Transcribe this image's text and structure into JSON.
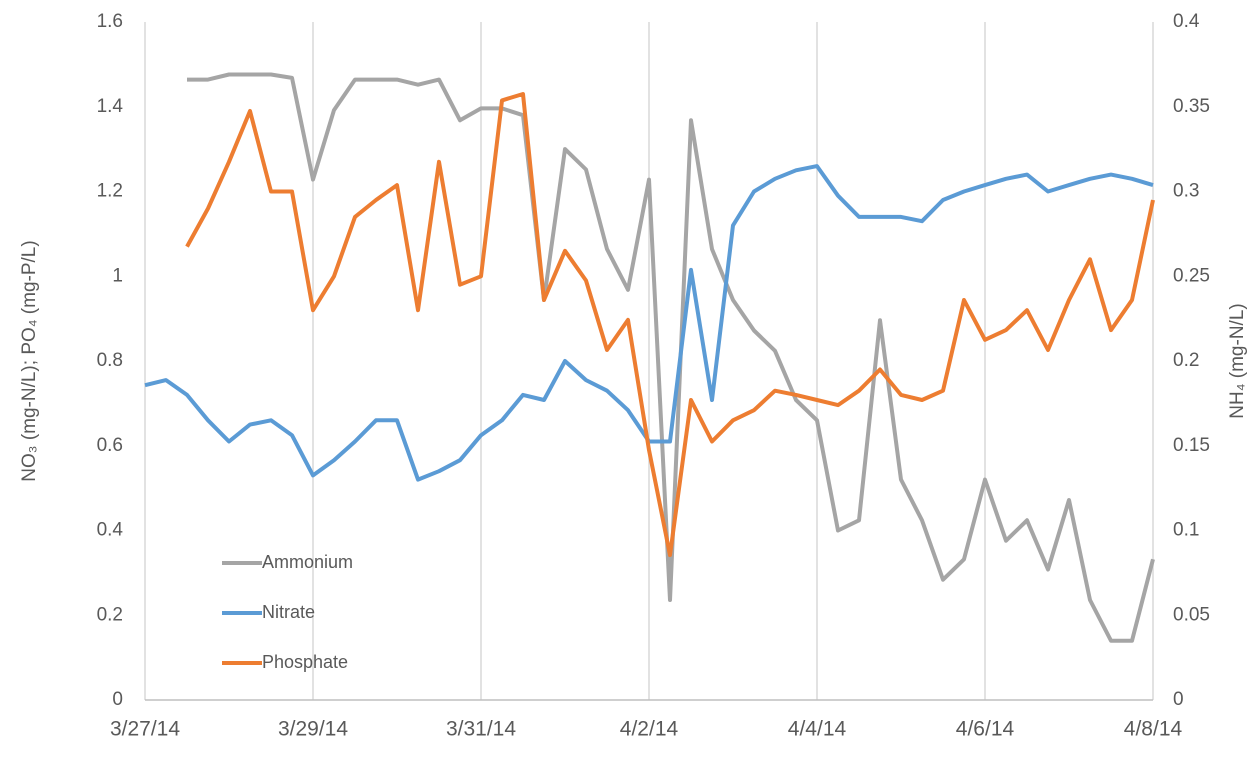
{
  "chart_data": {
    "type": "line",
    "x": [
      "2014-03-27T00:00",
      "2014-03-27T06:00",
      "2014-03-27T12:00",
      "2014-03-27T18:00",
      "2014-03-28T00:00",
      "2014-03-28T06:00",
      "2014-03-28T12:00",
      "2014-03-28T18:00",
      "2014-03-29T00:00",
      "2014-03-29T06:00",
      "2014-03-29T12:00",
      "2014-03-29T18:00",
      "2014-03-30T00:00",
      "2014-03-30T06:00",
      "2014-03-30T12:00",
      "2014-03-30T18:00",
      "2014-03-31T00:00",
      "2014-03-31T06:00",
      "2014-03-31T12:00",
      "2014-03-31T18:00",
      "2014-04-01T00:00",
      "2014-04-01T06:00",
      "2014-04-01T12:00",
      "2014-04-01T18:00",
      "2014-04-02T00:00",
      "2014-04-02T06:00",
      "2014-04-02T12:00",
      "2014-04-02T18:00",
      "2014-04-03T00:00",
      "2014-04-03T06:00",
      "2014-04-03T12:00",
      "2014-04-03T18:00",
      "2014-04-04T00:00",
      "2014-04-04T06:00",
      "2014-04-04T12:00",
      "2014-04-04T18:00",
      "2014-04-05T00:00",
      "2014-04-05T06:00",
      "2014-04-05T12:00",
      "2014-04-05T18:00",
      "2014-04-06T00:00",
      "2014-04-06T06:00",
      "2014-04-06T12:00",
      "2014-04-06T18:00",
      "2014-04-07T00:00",
      "2014-04-07T06:00",
      "2014-04-07T12:00",
      "2014-04-07T18:00",
      "2014-04-08T00:00"
    ],
    "series": [
      {
        "name": "Ammonium",
        "color": "#a5a5a5",
        "axis": "y2",
        "values": [
          null,
          null,
          0.366,
          0.366,
          0.369,
          0.369,
          0.369,
          0.367,
          0.307,
          0.348,
          0.366,
          0.366,
          0.366,
          0.363,
          0.366,
          0.342,
          0.349,
          0.349,
          0.345,
          0.236,
          0.325,
          0.313,
          0.266,
          0.242,
          0.307,
          0.059,
          0.342,
          0.266,
          0.236,
          0.218,
          0.206,
          0.177,
          0.165,
          0.1,
          0.106,
          0.224,
          0.13,
          0.106,
          0.071,
          0.083,
          0.13,
          0.094,
          0.106,
          0.077,
          0.118,
          0.059,
          0.035,
          0.035,
          0.083
        ]
      },
      {
        "name": "Nitrate",
        "color": "#5b9bd5",
        "values": [
          0.743,
          0.755,
          0.72,
          0.66,
          0.61,
          0.65,
          0.66,
          0.625,
          0.53,
          0.566,
          0.61,
          0.66,
          0.66,
          0.52,
          0.54,
          0.566,
          0.625,
          0.66,
          0.72,
          0.708,
          0.8,
          0.755,
          0.73,
          0.684,
          0.61,
          0.61,
          1.015,
          0.708,
          1.12,
          1.2,
          1.23,
          1.25,
          1.26,
          1.19,
          1.14,
          1.14,
          1.14,
          1.13,
          1.18,
          1.2,
          1.215,
          1.23,
          1.24,
          1.2,
          1.215,
          1.23,
          1.24,
          1.23,
          1.215
        ]
      },
      {
        "name": "Phosphate",
        "color": "#ed7d31",
        "values": [
          null,
          null,
          1.07,
          1.16,
          1.27,
          1.39,
          1.2,
          1.2,
          0.92,
          1.0,
          1.14,
          1.18,
          1.215,
          0.92,
          1.27,
          0.98,
          1.0,
          1.415,
          1.43,
          0.944,
          1.06,
          0.99,
          0.826,
          0.897,
          0.59,
          0.342,
          0.708,
          0.61,
          0.66,
          0.684,
          0.73,
          0.72,
          0.708,
          0.696,
          0.73,
          0.78,
          0.72,
          0.708,
          0.73,
          0.944,
          0.85,
          0.873,
          0.92,
          0.826,
          0.944,
          1.04,
          0.873,
          0.944,
          1.18
        ]
      }
    ],
    "xlim": [
      "2014-03-27T00:00",
      "2014-04-08T00:00"
    ],
    "xticks": [
      {
        "value": "2014-03-27T00:00",
        "label": "3/27/14"
      },
      {
        "value": "2014-03-29T00:00",
        "label": "3/29/14"
      },
      {
        "value": "2014-03-31T00:00",
        "label": "3/31/14"
      },
      {
        "value": "2014-04-02T00:00",
        "label": "4/2/14"
      },
      {
        "value": "2014-04-04T00:00",
        "label": "4/4/14"
      },
      {
        "value": "2014-04-06T00:00",
        "label": "4/6/14"
      },
      {
        "value": "2014-04-08T00:00",
        "label": "4/8/14"
      }
    ],
    "ylim": [
      0,
      1.6
    ],
    "yticks": [
      0,
      0.2,
      0.4,
      0.6,
      0.8,
      1,
      1.2,
      1.4,
      1.6
    ],
    "y2lim": [
      0,
      0.4
    ],
    "y2ticks": [
      0,
      0.05,
      0.1,
      0.15,
      0.2,
      0.25,
      0.3,
      0.35,
      0.4
    ],
    "ylabel": "NO₃ (mg-N/L); PO₄ (mg-P/L)",
    "y2label": "NH₄ (mg-N/L)",
    "grid": true,
    "legend": "lower-left"
  }
}
